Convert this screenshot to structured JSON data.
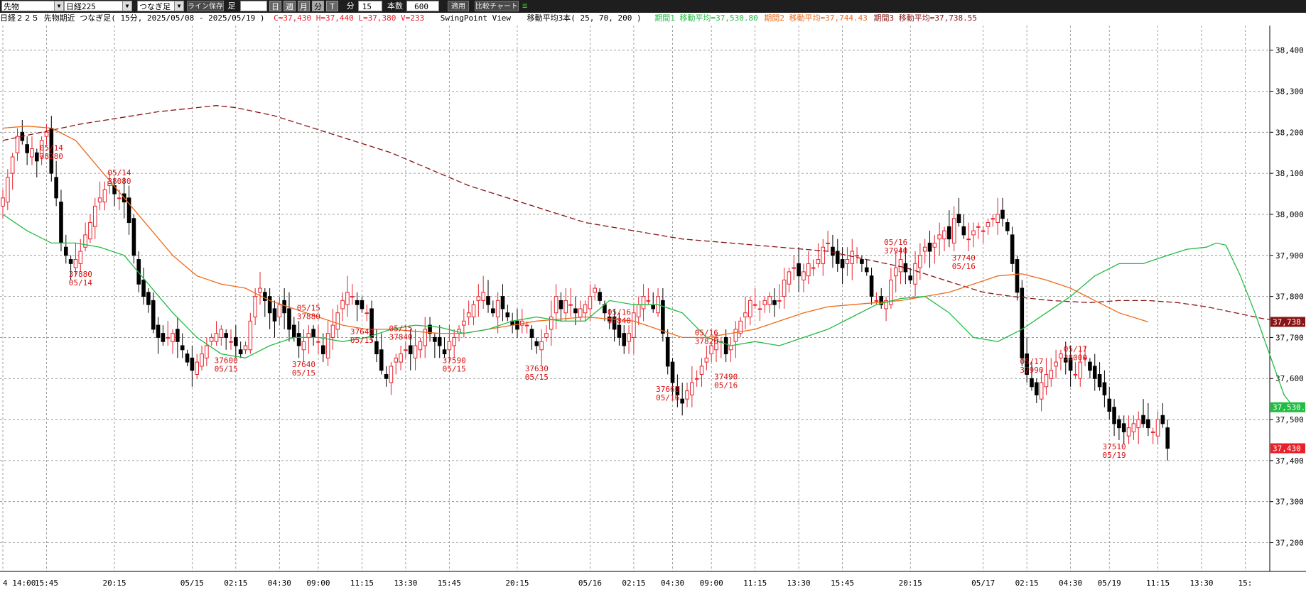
{
  "toolbar": {
    "market_select": "先物",
    "symbol_select": "日経225",
    "bar_type_select": "つなぎ足",
    "line_save_button": "ライン保存",
    "ashi_label": "足",
    "day_button": "日",
    "week_button": "週",
    "month_button": "月",
    "minute_button": "分",
    "tick_button": "T",
    "minute_label": "分",
    "interval_value": "15",
    "count_label": "本数",
    "count_value": "600",
    "apply_button": "適用",
    "compare_button": "比較チャート"
  },
  "info": {
    "title": "日経２２５ 先物期近 つなぎ足( 15分, 2025/05/08 - 2025/05/19 )",
    "ohlcv": "C=37,430 H=37,440 L=37,380 V=233",
    "indicator": "SwingPoint View",
    "ma_header": "移動平均3本( 25, 70, 200 )",
    "ma1": "期間1 移動平均=37,530.80",
    "ma2": "期間2 移動平均=37,744.43",
    "ma3": "期間3 移動平均=37,738.55"
  },
  "colors": {
    "up": "#e8202a",
    "down": "#000000",
    "ma1": "#22bb44",
    "ma2": "#ee6a1a",
    "ma3": "#8a1414",
    "swing": "#d81010",
    "grid": "#888888",
    "toolbar_bg": "#1e1e1e"
  },
  "chart_data": {
    "type": "candlestick",
    "title": "日経２２５ 先物期近 つなぎ足( 15分, 2025/05/08 - 2025/05/19 )",
    "ylim": [
      37130,
      38460
    ],
    "y_ticks": [
      "38,400",
      "38,300",
      "38,200",
      "38,100",
      "38,000",
      "37,900",
      "37,800",
      "37,700",
      "37,600",
      "37,500",
      "37,400",
      "37,300",
      "37,200"
    ],
    "y_tick_values": [
      38400,
      38300,
      38200,
      38100,
      38000,
      37900,
      37800,
      37700,
      37600,
      37500,
      37400,
      37300,
      37200
    ],
    "x_ticks": [
      "4 14:00",
      "15:45",
      "20:15",
      "05/15",
      "02:15",
      "04:30",
      "09:00",
      "11:15",
      "13:30",
      "15:45",
      "20:15",
      "05/16",
      "02:15",
      "04:30",
      "09:00",
      "11:15",
      "13:30",
      "15:45",
      "20:15",
      "05/17",
      "02:15",
      "04:30",
      "05/19",
      "11:15",
      "13:30",
      "15:"
    ],
    "x_tick_bars": [
      0,
      9,
      23,
      39,
      48,
      57,
      65,
      74,
      83,
      92,
      106,
      121,
      130,
      138,
      146,
      155,
      164,
      173,
      187,
      202,
      211,
      220,
      228,
      238,
      247,
      256
    ],
    "close": [
      38040,
      38090,
      38140,
      38190,
      38180,
      38150,
      38160,
      38130,
      38180,
      38200,
      38100,
      38040,
      37930,
      37900,
      37880,
      37890,
      37910,
      37950,
      37980,
      38020,
      38040,
      38060,
      38080,
      38050,
      38040,
      38030,
      37980,
      37900,
      37830,
      37800,
      37780,
      37720,
      37700,
      37690,
      37700,
      37710,
      37690,
      37670,
      37640,
      37620,
      37640,
      37660,
      37680,
      37700,
      37710,
      37720,
      37700,
      37690,
      37680,
      37660,
      37680,
      37740,
      37800,
      37820,
      37790,
      37760,
      37740,
      37780,
      37760,
      37720,
      37700,
      37680,
      37690,
      37710,
      37700,
      37690,
      37660,
      37710,
      37730,
      37760,
      37790,
      37810,
      37800,
      37780,
      37770,
      37760,
      37700,
      37660,
      37620,
      37600,
      37630,
      37650,
      37660,
      37670,
      37660,
      37680,
      37690,
      37720,
      37710,
      37690,
      37680,
      37660,
      37690,
      37700,
      37720,
      37740,
      37760,
      37780,
      37800,
      37810,
      37780,
      37760,
      37790,
      37770,
      37750,
      37730,
      37720,
      37740,
      37730,
      37700,
      37680,
      37690,
      37710,
      37750,
      37800,
      37770,
      37790,
      37780,
      37760,
      37770,
      37780,
      37800,
      37820,
      37790,
      37760,
      37740,
      37720,
      37700,
      37680,
      37710,
      37760,
      37780,
      37800,
      37790,
      37770,
      37800,
      37710,
      37630,
      37590,
      37560,
      37540,
      37570,
      37590,
      37600,
      37630,
      37650,
      37680,
      37700,
      37690,
      37660,
      37680,
      37720,
      37740,
      37760,
      37790,
      37780,
      37770,
      37790,
      37800,
      37780,
      37790,
      37840,
      37860,
      37870,
      37850,
      37860,
      37880,
      37870,
      37890,
      37920,
      37930,
      37900,
      37880,
      37870,
      37890,
      37910,
      37900,
      37880,
      37860,
      37800,
      37790,
      37780,
      37790,
      37840,
      37870,
      37890,
      37860,
      37840,
      37880,
      37900,
      37920,
      37910,
      37930,
      37950,
      37960,
      37940,
      37990,
      37980,
      37950,
      37940,
      37960,
      37970,
      37960,
      37980,
      37990,
      38000,
      37990,
      37960,
      37880,
      37810,
      37650,
      37610,
      37580,
      37560,
      37590,
      37610,
      37620,
      37640,
      37660,
      37640,
      37620,
      37610,
      37640,
      37650,
      37620,
      37600,
      37580,
      37560,
      37520,
      37490,
      37480,
      37470,
      37480,
      37490,
      37500,
      37490,
      37480,
      37470,
      37500,
      37490,
      37430
    ],
    "ma1": {
      "name": "期間1 移動平均",
      "period": 25,
      "values": [
        38000,
        37960,
        37930,
        37930,
        37920,
        37900,
        37830,
        37760,
        37700,
        37660,
        37650,
        37680,
        37700,
        37700,
        37690,
        37700,
        37720,
        37730,
        37725,
        37710,
        37720,
        37740,
        37750,
        37740,
        37740,
        37790,
        37780,
        37780,
        37760,
        37700,
        37680,
        37690,
        37680,
        37700,
        37720,
        37750,
        37780,
        37795,
        37800,
        37760,
        37700,
        37690,
        37720,
        37760,
        37800,
        37850,
        37880,
        37880,
        37900,
        37915,
        37920,
        37930,
        37925,
        37850,
        37760,
        37660,
        37560,
        37530
      ],
      "x_bars": [
        0,
        5,
        10,
        15,
        20,
        25,
        30,
        35,
        40,
        45,
        50,
        55,
        60,
        65,
        70,
        75,
        80,
        85,
        90,
        95,
        100,
        105,
        110,
        115,
        120,
        125,
        130,
        135,
        140,
        145,
        150,
        155,
        160,
        165,
        170,
        175,
        180,
        185,
        190,
        195,
        200,
        205,
        210,
        215,
        220,
        225,
        230,
        235,
        240,
        244,
        248,
        250,
        252,
        255,
        258,
        261,
        264,
        266
      ]
    },
    "ma2": {
      "name": "期間2 移動平均",
      "period": 70,
      "values": [
        38210,
        38215,
        38210,
        38180,
        38110,
        38040,
        37970,
        37900,
        37850,
        37830,
        37820,
        37790,
        37770,
        37750,
        37730,
        37720,
        37720,
        37715,
        37710,
        37710,
        37720,
        37730,
        37740,
        37745,
        37750,
        37745,
        37740,
        37720,
        37700,
        37700,
        37710,
        37720,
        37740,
        37760,
        37775,
        37780,
        37785,
        37790,
        37800,
        37810,
        37830,
        37850,
        37855,
        37840,
        37820,
        37790,
        37760,
        37738
      ],
      "x_bars": [
        0,
        5,
        10,
        15,
        20,
        25,
        30,
        35,
        40,
        45,
        50,
        55,
        60,
        65,
        70,
        75,
        80,
        85,
        90,
        95,
        100,
        105,
        110,
        115,
        120,
        125,
        130,
        135,
        140,
        145,
        150,
        155,
        160,
        165,
        170,
        175,
        180,
        185,
        190,
        195,
        200,
        205,
        210,
        215,
        220,
        225,
        230,
        236
      ]
    },
    "ma3": {
      "name": "期間3 移動平均",
      "period": 200,
      "values": [
        38180,
        38200,
        38220,
        38235,
        38250,
        38260,
        38265,
        38260,
        38240,
        38210,
        38180,
        38150,
        38110,
        38070,
        38040,
        38010,
        37980,
        37960,
        37940,
        37930,
        37920,
        37910,
        37890,
        37870,
        37840,
        37810,
        37800,
        37790,
        37785,
        37790,
        37790,
        37785,
        37775,
        37760,
        37745,
        37738
      ],
      "x_bars": [
        0,
        8,
        16,
        24,
        32,
        40,
        44,
        48,
        56,
        64,
        72,
        80,
        88,
        96,
        104,
        112,
        120,
        130,
        140,
        150,
        160,
        170,
        178,
        186,
        194,
        202,
        208,
        216,
        224,
        230,
        236,
        242,
        248,
        254,
        260,
        266
      ]
    },
    "swing_points": [
      {
        "bar": 10,
        "value": "38280",
        "date": "05/14",
        "pos": "above"
      },
      {
        "bar": 16,
        "value": "37880",
        "date": "05/14",
        "pos": "below"
      },
      {
        "bar": 24,
        "value": "38080",
        "date": "05/14",
        "pos": "above"
      },
      {
        "bar": 46,
        "value": "37600",
        "date": "05/15",
        "pos": "below"
      },
      {
        "bar": 62,
        "value": "37640",
        "date": "05/15",
        "pos": "below"
      },
      {
        "bar": 63,
        "value": "37880",
        "date": "05/15",
        "pos": "above"
      },
      {
        "bar": 74,
        "value": "37640",
        "date": "05/15",
        "pos": "below"
      },
      {
        "bar": 82,
        "value": "37840",
        "date": "05/15",
        "pos": "above"
      },
      {
        "bar": 93,
        "value": "37590",
        "date": "05/15",
        "pos": "below"
      },
      {
        "bar": 110,
        "value": "37630",
        "date": "05/15",
        "pos": "below"
      },
      {
        "bar": 127,
        "value": "37840",
        "date": "05/16",
        "pos": "above"
      },
      {
        "bar": 137,
        "value": "37660",
        "date": "05/16",
        "pos": "below"
      },
      {
        "bar": 145,
        "value": "37820",
        "date": "05/16",
        "pos": "above"
      },
      {
        "bar": 149,
        "value": "37490",
        "date": "05/16",
        "pos": "below"
      },
      {
        "bar": 184,
        "value": "37940",
        "date": "05/16",
        "pos": "above"
      },
      {
        "bar": 198,
        "value": "37740",
        "date": "05/16",
        "pos": "below"
      },
      {
        "bar": 212,
        "value": "37990",
        "date": "05/17",
        "pos": "above"
      },
      {
        "bar": 221,
        "value": "38000",
        "date": "05/17",
        "pos": "above"
      },
      {
        "bar": 229,
        "value": "37510",
        "date": "05/19",
        "pos": "below"
      }
    ],
    "price_labels": [
      {
        "value": "37,738.",
        "price": 37738,
        "color": "#8a1414"
      },
      {
        "value": "37,530.",
        "price": 37530,
        "color": "#22bb44"
      },
      {
        "value": "37,430",
        "price": 37430,
        "color": "#e8202a"
      }
    ]
  }
}
